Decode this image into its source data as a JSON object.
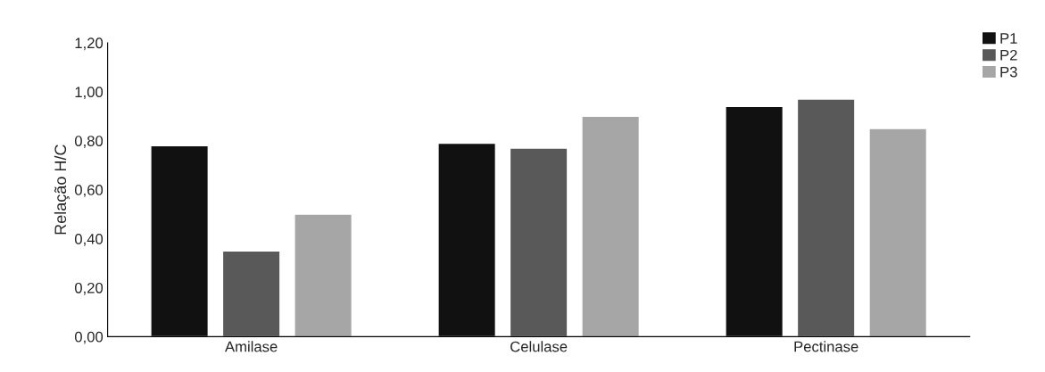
{
  "chart_data": {
    "type": "bar",
    "ylabel": "Relação H/C",
    "categories": [
      "Amilase",
      "Celulase",
      "Pectinase"
    ],
    "series": [
      {
        "name": "P1",
        "color": "#111111",
        "values": [
          0.78,
          0.79,
          0.94
        ]
      },
      {
        "name": "P2",
        "color": "#595959",
        "values": [
          0.35,
          0.77,
          0.97
        ]
      },
      {
        "name": "P3",
        "color": "#a6a6a6",
        "values": [
          0.5,
          0.9,
          0.85
        ]
      }
    ],
    "ylim": [
      0,
      1.2
    ],
    "yticks": [
      {
        "value": 0,
        "label": "0,00"
      },
      {
        "value": 0.2,
        "label": "0,20"
      },
      {
        "value": 0.4,
        "label": "0,40"
      },
      {
        "value": 0.6,
        "label": "0,60"
      },
      {
        "value": 0.8,
        "label": "0,80"
      },
      {
        "value": 1.0,
        "label": "1,00"
      },
      {
        "value": 1.2,
        "label": "1,20"
      }
    ],
    "grid": false,
    "legend": "top right"
  }
}
